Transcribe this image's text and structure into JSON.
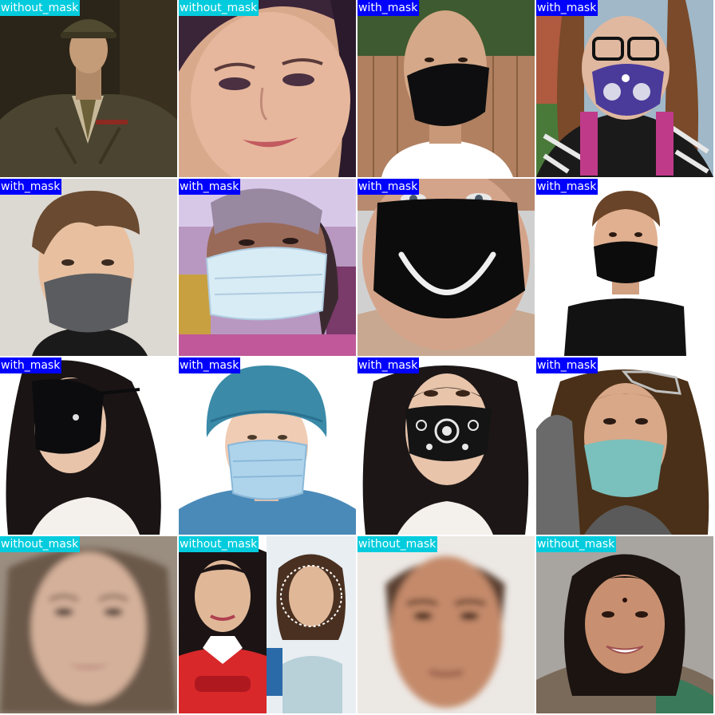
{
  "colors": {
    "with_mask": "#0000ff",
    "without_mask": "#00ccdd"
  },
  "tiles": [
    {
      "label": "without_mask",
      "class": "without_mask",
      "subject": "man in military uniform with cap"
    },
    {
      "label": "without_mask",
      "class": "without_mask",
      "subject": "close-up of woman's face"
    },
    {
      "label": "with_mask",
      "class": "with_mask",
      "subject": "bald man wearing black mask"
    },
    {
      "label": "with_mask",
      "class": "with_mask",
      "subject": "woman with glasses and purple respirator mask"
    },
    {
      "label": "with_mask",
      "class": "with_mask",
      "subject": "person with short hair and grey mask"
    },
    {
      "label": "with_mask",
      "class": "with_mask",
      "subject": "elderly woman with light blue surgical mask"
    },
    {
      "label": "with_mask",
      "class": "with_mask",
      "subject": "black mask with white smile print"
    },
    {
      "label": "with_mask",
      "class": "with_mask",
      "subject": "young man in black t-shirt and black mask"
    },
    {
      "label": "with_mask",
      "class": "with_mask",
      "subject": "woman with long dark hair and black mask"
    },
    {
      "label": "with_mask",
      "class": "with_mask",
      "subject": "person in surgical cap and blue surgical mask"
    },
    {
      "label": "with_mask",
      "class": "with_mask",
      "subject": "woman with black bandana pattern mask"
    },
    {
      "label": "with_mask",
      "class": "with_mask",
      "subject": "woman with sunglasses on head and teal mask"
    },
    {
      "label": "without_mask",
      "class": "without_mask",
      "subject": "blurred composite female face"
    },
    {
      "label": "without_mask",
      "class": "without_mask",
      "subject": "two photos of woman with dark hair"
    },
    {
      "label": "without_mask",
      "class": "without_mask",
      "subject": "blurred composite male face"
    },
    {
      "label": "without_mask",
      "class": "without_mask",
      "subject": "smiling woman with bindi"
    }
  ]
}
